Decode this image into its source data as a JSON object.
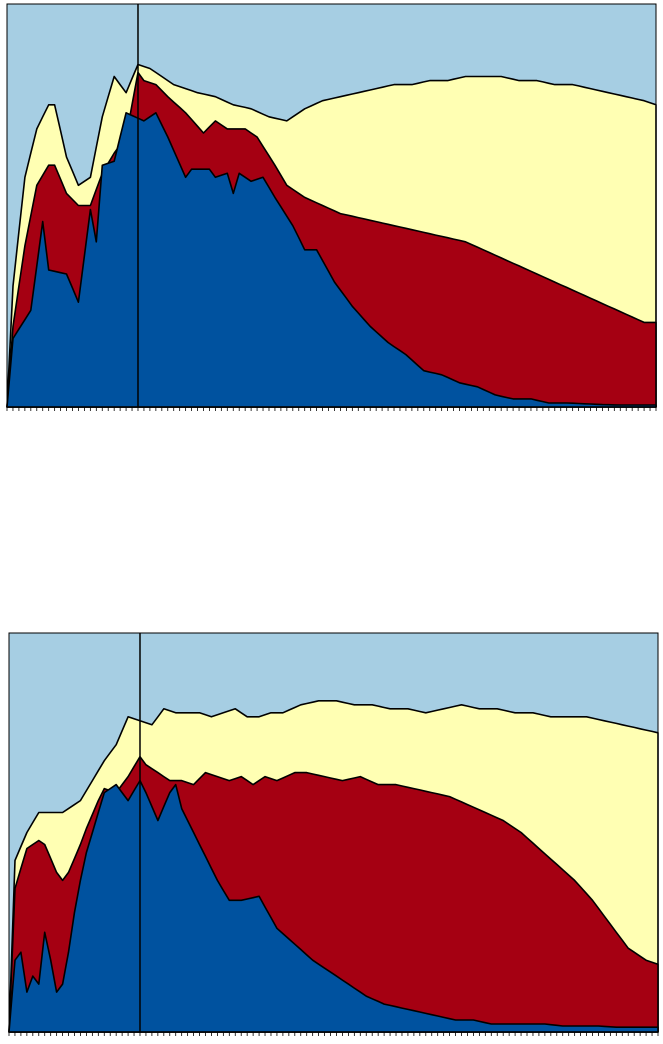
{
  "colors": {
    "background": "#A6CEE3",
    "blue": "#00529F",
    "red": "#A50012",
    "yellow": "#FFFFB3",
    "line": "#000000"
  },
  "chart_data": [
    {
      "type": "area",
      "stacked": true,
      "x_count": 110,
      "ylim": [
        0,
        100
      ],
      "vline_x": 22,
      "legend": "none",
      "grid": false,
      "series": [
        {
          "color": "#00529F",
          "points": [
            [
              0,
              0
            ],
            [
              1,
              17
            ],
            [
              4,
              24
            ],
            [
              6,
              46
            ],
            [
              7,
              34
            ],
            [
              10,
              33
            ],
            [
              12,
              26
            ],
            [
              14,
              49
            ],
            [
              15,
              41
            ],
            [
              16,
              60
            ],
            [
              18,
              61
            ],
            [
              20,
              73
            ],
            [
              23,
              71
            ],
            [
              25,
              73
            ],
            [
              27,
              67
            ],
            [
              30,
              57
            ],
            [
              31,
              59
            ],
            [
              34,
              59
            ],
            [
              35,
              57
            ],
            [
              37,
              58
            ],
            [
              38,
              53
            ],
            [
              39,
              58
            ],
            [
              41,
              56
            ],
            [
              43,
              57
            ],
            [
              45,
              52
            ],
            [
              48,
              45
            ],
            [
              50,
              39
            ],
            [
              52,
              39
            ],
            [
              55,
              31
            ],
            [
              58,
              25
            ],
            [
              61,
              20
            ],
            [
              64,
              16
            ],
            [
              67,
              13
            ],
            [
              70,
              9
            ],
            [
              73,
              8
            ],
            [
              76,
              6
            ],
            [
              79,
              5
            ],
            [
              82,
              3
            ],
            [
              85,
              2
            ],
            [
              88,
              2
            ],
            [
              91,
              1
            ],
            [
              94,
              1
            ],
            [
              97,
              0.8
            ],
            [
              100,
              0.6
            ],
            [
              103,
              0.5
            ],
            [
              106,
              0.5
            ],
            [
              109,
              0.5
            ]
          ]
        },
        {
          "color": "#A50012",
          "points": [
            [
              0,
              0
            ],
            [
              1,
              20
            ],
            [
              3,
              40
            ],
            [
              5,
              55
            ],
            [
              7,
              60
            ],
            [
              8,
              60
            ],
            [
              10,
              53
            ],
            [
              12,
              50
            ],
            [
              14,
              50
            ],
            [
              16,
              58
            ],
            [
              18,
              63
            ],
            [
              20,
              67
            ],
            [
              22,
              83
            ],
            [
              23,
              81
            ],
            [
              25,
              80
            ],
            [
              27,
              77
            ],
            [
              30,
              73
            ],
            [
              33,
              68
            ],
            [
              35,
              71
            ],
            [
              37,
              69
            ],
            [
              40,
              69
            ],
            [
              42,
              67
            ],
            [
              45,
              60
            ],
            [
              47,
              55
            ],
            [
              50,
              52
            ],
            [
              53,
              50
            ],
            [
              56,
              48
            ],
            [
              59,
              47
            ],
            [
              62,
              46
            ],
            [
              65,
              45
            ],
            [
              68,
              44
            ],
            [
              71,
              43
            ],
            [
              74,
              42
            ],
            [
              77,
              41
            ],
            [
              80,
              39
            ],
            [
              83,
              37
            ],
            [
              86,
              35
            ],
            [
              89,
              33
            ],
            [
              92,
              31
            ],
            [
              95,
              29
            ],
            [
              98,
              27
            ],
            [
              101,
              25
            ],
            [
              104,
              23
            ],
            [
              107,
              21
            ],
            [
              109,
              21
            ]
          ]
        },
        {
          "color": "#FFFFB3",
          "points": [
            [
              0,
              0
            ],
            [
              1,
              30
            ],
            [
              3,
              57
            ],
            [
              5,
              69
            ],
            [
              7,
              75
            ],
            [
              8,
              75
            ],
            [
              10,
              62
            ],
            [
              12,
              55
            ],
            [
              14,
              57
            ],
            [
              16,
              72
            ],
            [
              18,
              82
            ],
            [
              20,
              78
            ],
            [
              22,
              85
            ],
            [
              24,
              84
            ],
            [
              26,
              82
            ],
            [
              28,
              80
            ],
            [
              30,
              79
            ],
            [
              32,
              78
            ],
            [
              35,
              77
            ],
            [
              38,
              75
            ],
            [
              41,
              74
            ],
            [
              44,
              72
            ],
            [
              47,
              71
            ],
            [
              50,
              74
            ],
            [
              53,
              76
            ],
            [
              56,
              77
            ],
            [
              59,
              78
            ],
            [
              62,
              79
            ],
            [
              65,
              80
            ],
            [
              68,
              80
            ],
            [
              71,
              81
            ],
            [
              74,
              81
            ],
            [
              77,
              82
            ],
            [
              80,
              82
            ],
            [
              83,
              82
            ],
            [
              86,
              81
            ],
            [
              89,
              81
            ],
            [
              92,
              80
            ],
            [
              95,
              80
            ],
            [
              98,
              79
            ],
            [
              101,
              78
            ],
            [
              104,
              77
            ],
            [
              107,
              76
            ],
            [
              109,
              75
            ]
          ]
        }
      ]
    },
    {
      "type": "area",
      "stacked": true,
      "x_count": 110,
      "ylim": [
        0,
        100
      ],
      "vline_x": 22,
      "legend": "none",
      "grid": false,
      "series": [
        {
          "color": "#00529F",
          "points": [
            [
              0,
              0
            ],
            [
              1,
              18
            ],
            [
              2,
              20
            ],
            [
              3,
              10
            ],
            [
              4,
              14
            ],
            [
              5,
              12
            ],
            [
              6,
              25
            ],
            [
              7,
              18
            ],
            [
              8,
              10
            ],
            [
              9,
              12
            ],
            [
              10,
              20
            ],
            [
              11,
              30
            ],
            [
              12,
              38
            ],
            [
              13,
              45
            ],
            [
              15,
              55
            ],
            [
              16,
              60
            ],
            [
              18,
              62
            ],
            [
              20,
              58
            ],
            [
              22,
              63
            ],
            [
              23,
              60
            ],
            [
              25,
              53
            ],
            [
              27,
              60
            ],
            [
              28,
              62
            ],
            [
              29,
              56
            ],
            [
              31,
              50
            ],
            [
              33,
              44
            ],
            [
              35,
              38
            ],
            [
              37,
              33
            ],
            [
              39,
              33
            ],
            [
              42,
              34
            ],
            [
              45,
              26
            ],
            [
              48,
              22
            ],
            [
              51,
              18
            ],
            [
              54,
              15
            ],
            [
              57,
              12
            ],
            [
              60,
              9
            ],
            [
              63,
              7
            ],
            [
              66,
              6
            ],
            [
              69,
              5
            ],
            [
              72,
              4
            ],
            [
              75,
              3
            ],
            [
              78,
              3
            ],
            [
              81,
              2
            ],
            [
              84,
              2
            ],
            [
              87,
              2
            ],
            [
              90,
              2
            ],
            [
              93,
              1.5
            ],
            [
              96,
              1.5
            ],
            [
              99,
              1.5
            ],
            [
              102,
              1.2
            ],
            [
              105,
              1.2
            ],
            [
              109,
              1.2
            ]
          ]
        },
        {
          "color": "#A50012",
          "points": [
            [
              0,
              0
            ],
            [
              1,
              36
            ],
            [
              3,
              46
            ],
            [
              5,
              48
            ],
            [
              6,
              47
            ],
            [
              8,
              40
            ],
            [
              9,
              38
            ],
            [
              10,
              40
            ],
            [
              12,
              47
            ],
            [
              13,
              51
            ],
            [
              15,
              58
            ],
            [
              16,
              61
            ],
            [
              18,
              60
            ],
            [
              20,
              64
            ],
            [
              22,
              69
            ],
            [
              23,
              67
            ],
            [
              25,
              65
            ],
            [
              27,
              63
            ],
            [
              29,
              63
            ],
            [
              31,
              62
            ],
            [
              33,
              65
            ],
            [
              35,
              64
            ],
            [
              37,
              63
            ],
            [
              39,
              64
            ],
            [
              41,
              62
            ],
            [
              43,
              64
            ],
            [
              45,
              63
            ],
            [
              48,
              65
            ],
            [
              50,
              65
            ],
            [
              53,
              64
            ],
            [
              56,
              63
            ],
            [
              59,
              64
            ],
            [
              62,
              62
            ],
            [
              65,
              62
            ],
            [
              68,
              61
            ],
            [
              71,
              60
            ],
            [
              74,
              59
            ],
            [
              77,
              57
            ],
            [
              80,
              55
            ],
            [
              83,
              53
            ],
            [
              86,
              50
            ],
            [
              89,
              46
            ],
            [
              92,
              42
            ],
            [
              95,
              38
            ],
            [
              98,
              33
            ],
            [
              101,
              27
            ],
            [
              104,
              21
            ],
            [
              107,
              18
            ],
            [
              109,
              17
            ]
          ]
        },
        {
          "color": "#FFFFB3",
          "points": [
            [
              0,
              0
            ],
            [
              1,
              43
            ],
            [
              3,
              50
            ],
            [
              5,
              55
            ],
            [
              7,
              55
            ],
            [
              9,
              55
            ],
            [
              10,
              56
            ],
            [
              12,
              58
            ],
            [
              14,
              63
            ],
            [
              16,
              68
            ],
            [
              18,
              72
            ],
            [
              20,
              79
            ],
            [
              22,
              78
            ],
            [
              24,
              77
            ],
            [
              26,
              81
            ],
            [
              28,
              80
            ],
            [
              30,
              80
            ],
            [
              32,
              80
            ],
            [
              34,
              79
            ],
            [
              36,
              80
            ],
            [
              38,
              81
            ],
            [
              40,
              79
            ],
            [
              42,
              79
            ],
            [
              44,
              80
            ],
            [
              46,
              80
            ],
            [
              49,
              82
            ],
            [
              52,
              83
            ],
            [
              55,
              83
            ],
            [
              58,
              82
            ],
            [
              61,
              82
            ],
            [
              64,
              81
            ],
            [
              67,
              81
            ],
            [
              70,
              80
            ],
            [
              73,
              81
            ],
            [
              76,
              82
            ],
            [
              79,
              81
            ],
            [
              82,
              81
            ],
            [
              85,
              80
            ],
            [
              88,
              80
            ],
            [
              91,
              79
            ],
            [
              94,
              79
            ],
            [
              97,
              79
            ],
            [
              100,
              78
            ],
            [
              103,
              77
            ],
            [
              106,
              76
            ],
            [
              109,
              75
            ]
          ]
        }
      ]
    }
  ]
}
